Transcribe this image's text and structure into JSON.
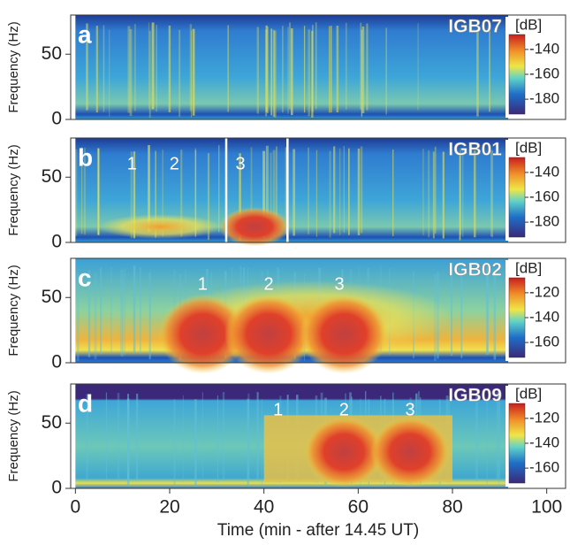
{
  "chart_data": [
    {
      "type": "spectrogram",
      "panel": "a",
      "station": "IGB07",
      "ylabel": "Frequency (Hz)",
      "xlim": [
        -1,
        104
      ],
      "ylim": [
        0,
        80
      ],
      "yticks": [
        0,
        50
      ],
      "colorbar": {
        "label": "[dB]",
        "clim": [
          -192,
          -128
        ],
        "ticks": [
          -140,
          -160,
          -180
        ]
      }
    },
    {
      "type": "spectrogram",
      "panel": "b",
      "station": "IGB01",
      "ylabel": "Frequency (Hz)",
      "xlim": [
        -1,
        104
      ],
      "ylim": [
        0,
        80
      ],
      "yticks": [
        0,
        50
      ],
      "colorbar": {
        "label": "[dB]",
        "clim": [
          -192,
          -128
        ],
        "ticks": [
          -140,
          -160,
          -180
        ]
      },
      "events": [
        {
          "label": "1",
          "x": 12
        },
        {
          "label": "2",
          "x": 21
        },
        {
          "label": "3",
          "x": 35
        }
      ],
      "markers": [
        32,
        45
      ]
    },
    {
      "type": "spectrogram",
      "panel": "c",
      "station": "IGB02",
      "ylabel": "Frequency (Hz)",
      "xlim": [
        -1,
        104
      ],
      "ylim": [
        0,
        80
      ],
      "yticks": [
        0,
        50
      ],
      "colorbar": {
        "label": "[dB]",
        "clim": [
          -172,
          -108
        ],
        "ticks": [
          -120,
          -140,
          -160
        ]
      },
      "events": [
        {
          "label": "1",
          "x": 27
        },
        {
          "label": "2",
          "x": 41
        },
        {
          "label": "3",
          "x": 56
        }
      ]
    },
    {
      "type": "spectrogram",
      "panel": "d",
      "station": "IGB09",
      "ylabel": "Frequency (Hz)",
      "xlabel": "Time (min - after 14.45 UT)",
      "xlim": [
        -1,
        104
      ],
      "ylim": [
        0,
        80
      ],
      "yticks": [
        0,
        50
      ],
      "xticks": [
        0,
        20,
        40,
        60,
        80,
        100
      ],
      "colorbar": {
        "label": "[dB]",
        "clim": [
          -172,
          -108
        ],
        "ticks": [
          -120,
          -140,
          -160
        ]
      },
      "events": [
        {
          "label": "1",
          "x": 43
        },
        {
          "label": "2",
          "x": 57
        },
        {
          "label": "3",
          "x": 71
        }
      ]
    }
  ]
}
